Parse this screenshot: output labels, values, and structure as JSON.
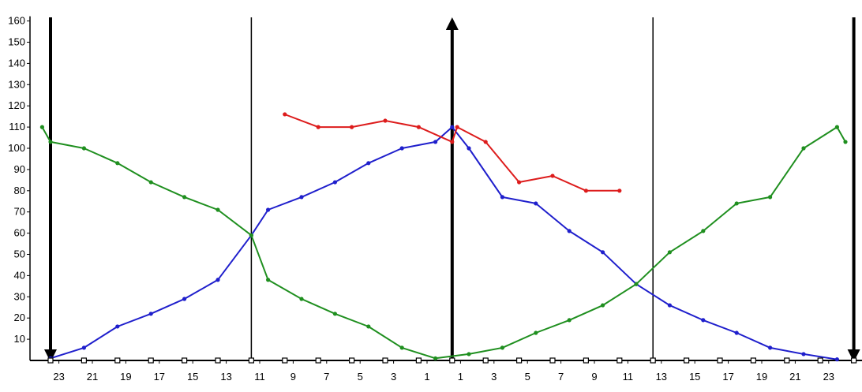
{
  "colors": {
    "background": "#ffffff",
    "axis": "#000000",
    "blue_series": "#1f1fcc",
    "green_series": "#1f8f1f",
    "red_series": "#dd1c1c"
  },
  "chart_data": {
    "type": "line",
    "title": "",
    "xlabel": "",
    "ylabel": "",
    "grid": false,
    "legend": "none",
    "ylim": [
      0,
      160
    ],
    "yticks": [
      10,
      20,
      30,
      40,
      50,
      60,
      70,
      80,
      90,
      100,
      110,
      120,
      130,
      140,
      150,
      160
    ],
    "xlim": [
      -1,
      48
    ],
    "x_tick_positions": [
      0.5,
      2.5,
      4.5,
      6.5,
      8.5,
      10.5,
      12.5,
      14.5,
      16.5,
      18.5,
      20.5,
      22.5,
      24.5,
      26.5,
      28.5,
      30.5,
      32.5,
      34.5,
      36.5,
      38.5,
      40.5,
      42.5,
      44.5,
      46.5
    ],
    "x_tick_labels": [
      "23",
      "21",
      "19",
      "17",
      "15",
      "13",
      "11",
      "9",
      "7",
      "5",
      "3",
      "1",
      "1",
      "3",
      "5",
      "7",
      "9",
      "11",
      "13",
      "15",
      "17",
      "19",
      "21",
      "23"
    ],
    "marker_x": [
      0,
      2,
      4,
      6,
      8,
      10,
      12,
      14,
      16,
      18,
      20,
      22,
      24,
      26,
      28,
      30,
      32,
      34,
      36,
      38,
      40,
      42,
      44,
      46,
      48
    ],
    "vertical_lines": [
      {
        "x": 0,
        "style": "thick-arrow-down"
      },
      {
        "x": 12,
        "style": "thin"
      },
      {
        "x": 24,
        "style": "thick-arrow-up"
      },
      {
        "x": 36,
        "style": "thin"
      },
      {
        "x": 48,
        "style": "thick-arrow-down"
      }
    ],
    "series": [
      {
        "color": "#1f1fcc",
        "points": [
          [
            0,
            1
          ],
          [
            2,
            6
          ],
          [
            4,
            16
          ],
          [
            6,
            22
          ],
          [
            8,
            29
          ],
          [
            10,
            38
          ],
          [
            12,
            59
          ],
          [
            13,
            71
          ],
          [
            15,
            77
          ],
          [
            17,
            84
          ],
          [
            19,
            93
          ],
          [
            21,
            100
          ],
          [
            23,
            103
          ],
          [
            24,
            110
          ],
          [
            25,
            100
          ],
          [
            27,
            77
          ],
          [
            29,
            74
          ],
          [
            31,
            61
          ],
          [
            33,
            51
          ],
          [
            35,
            36
          ],
          [
            37,
            26
          ],
          [
            39,
            19
          ],
          [
            41,
            13
          ],
          [
            43,
            6
          ],
          [
            45,
            3
          ],
          [
            47,
            0.5
          ]
        ]
      },
      {
        "color": "#1f8f1f",
        "points": [
          [
            -0.5,
            110
          ],
          [
            0,
            103
          ],
          [
            2,
            100
          ],
          [
            4,
            93
          ],
          [
            6,
            84
          ],
          [
            8,
            77
          ],
          [
            10,
            71
          ],
          [
            12,
            59
          ],
          [
            13,
            38
          ],
          [
            15,
            29
          ],
          [
            17,
            22
          ],
          [
            19,
            16
          ],
          [
            21,
            6
          ],
          [
            23,
            1
          ],
          [
            25,
            3
          ],
          [
            27,
            6
          ],
          [
            29,
            13
          ],
          [
            31,
            19
          ],
          [
            33,
            26
          ],
          [
            35,
            36
          ],
          [
            37,
            51
          ],
          [
            39,
            61
          ],
          [
            41,
            74
          ],
          [
            43,
            77
          ],
          [
            45,
            100
          ],
          [
            47,
            110
          ],
          [
            47.5,
            103
          ]
        ]
      },
      {
        "color": "#dd1c1c",
        "points": [
          [
            14,
            116
          ],
          [
            16,
            110
          ],
          [
            18,
            110
          ],
          [
            20,
            113
          ],
          [
            22,
            110
          ],
          [
            24,
            103
          ],
          [
            24.3,
            110
          ],
          [
            26,
            103
          ],
          [
            28,
            84
          ],
          [
            30,
            87
          ],
          [
            32,
            80
          ],
          [
            34,
            80
          ]
        ]
      }
    ]
  }
}
